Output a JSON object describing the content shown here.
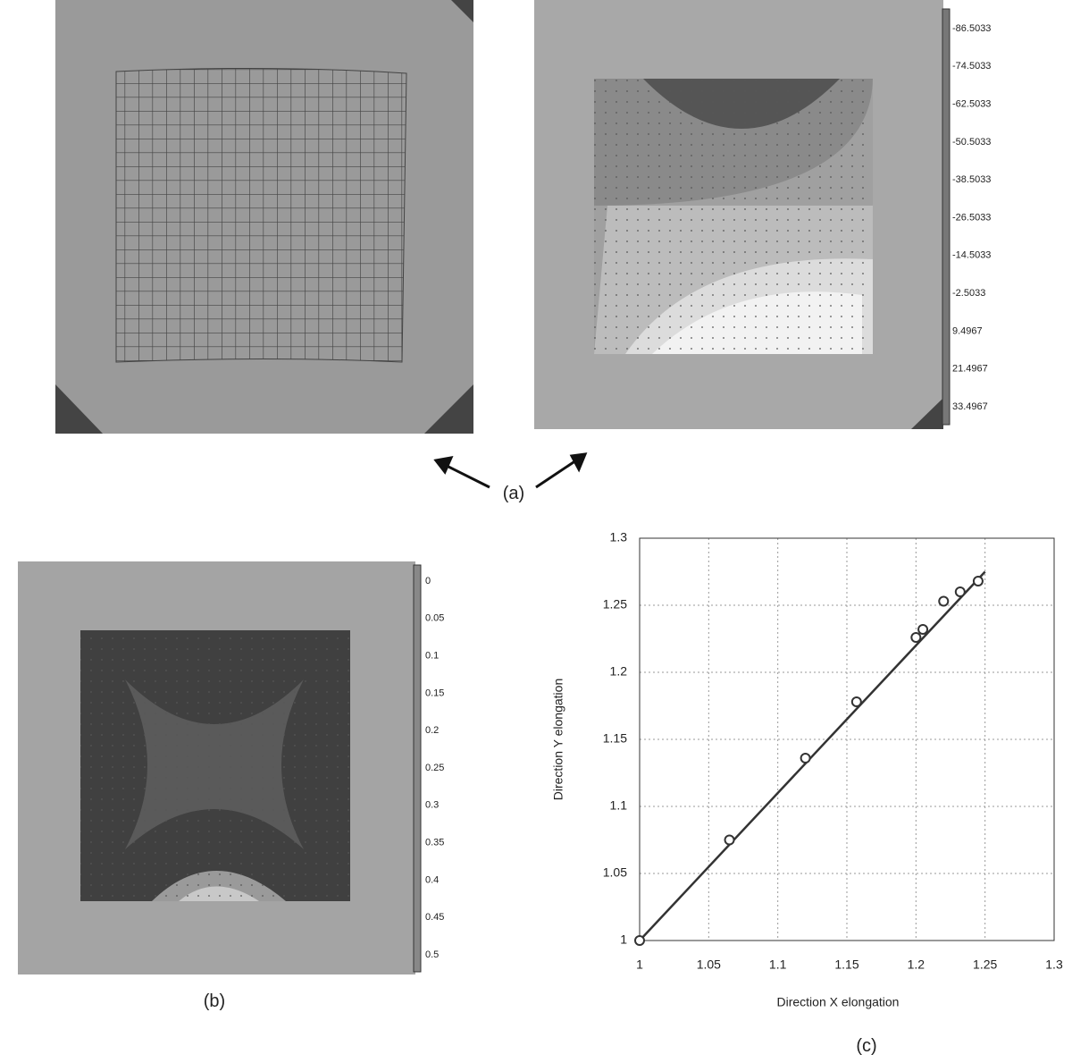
{
  "labels": {
    "a": "(a)",
    "b": "(b)",
    "c": "(c)"
  },
  "contour_a": {
    "legend": [
      "-86.5033",
      "-74.5033",
      "-62.5033",
      "-50.5033",
      "-38.5033",
      "-26.5033",
      "-14.5033",
      "-2.5033",
      "9.4967",
      "21.4967",
      "33.4967"
    ]
  },
  "contour_b": {
    "legend": [
      "0",
      "0.05",
      "0.1",
      "0.15",
      "0.2",
      "0.25",
      "0.3",
      "0.35",
      "0.4",
      "0.45",
      "0.5"
    ]
  },
  "chart_data": {
    "type": "scatter",
    "x_label": "Direction X elongation",
    "y_label": "Direction Y elongation",
    "x": [
      1,
      1.065,
      1.12,
      1.157,
      1.2,
      1.205,
      1.22,
      1.232,
      1.245
    ],
    "values": [
      1,
      1.075,
      1.136,
      1.178,
      1.226,
      1.232,
      1.253,
      1.26,
      1.268
    ],
    "trend": {
      "x": [
        1,
        1.25
      ],
      "values": [
        1,
        1.275
      ]
    },
    "color": "#333333",
    "xlim": [
      1,
      1.3
    ],
    "ylim": [
      1,
      1.3
    ],
    "xticks": [
      1,
      1.05,
      1.1,
      1.15,
      1.2,
      1.25,
      1.3
    ],
    "yticks": [
      1,
      1.05,
      1.1,
      1.15,
      1.2,
      1.25,
      1.3
    ],
    "grid": true
  }
}
